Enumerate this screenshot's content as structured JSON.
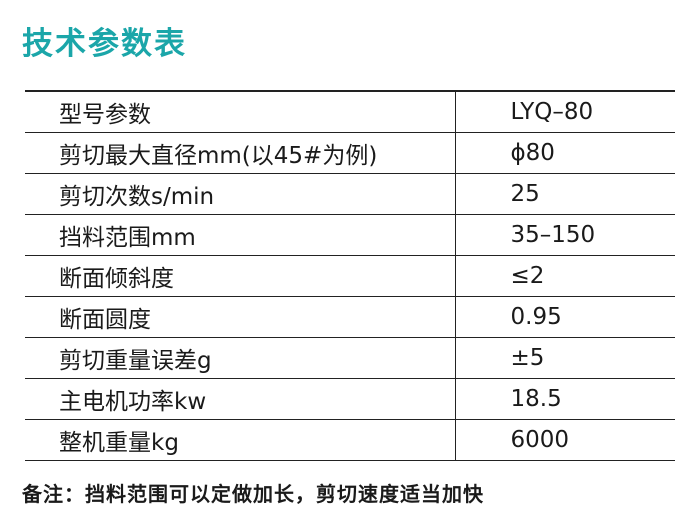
{
  "header": {
    "title": "技术参数表"
  },
  "table": {
    "rows": [
      [
        "型号参数",
        "LYQ–80"
      ],
      [
        "剪切最大直径mm(以45#为例)",
        "ϕ80"
      ],
      [
        "剪切次数s/min",
        "25"
      ],
      [
        "挡料范围mm",
        "35–150"
      ],
      [
        "断面倾斜度",
        "≤2"
      ],
      [
        "断面圆度",
        "0.95"
      ],
      [
        "剪切重量误差g",
        "±5"
      ],
      [
        "主电机功率kw",
        "18.5"
      ],
      [
        "整机重量kg",
        "6000"
      ]
    ]
  },
  "note": "备注：挡料范围可以定做加长，剪切速度适当加快"
}
